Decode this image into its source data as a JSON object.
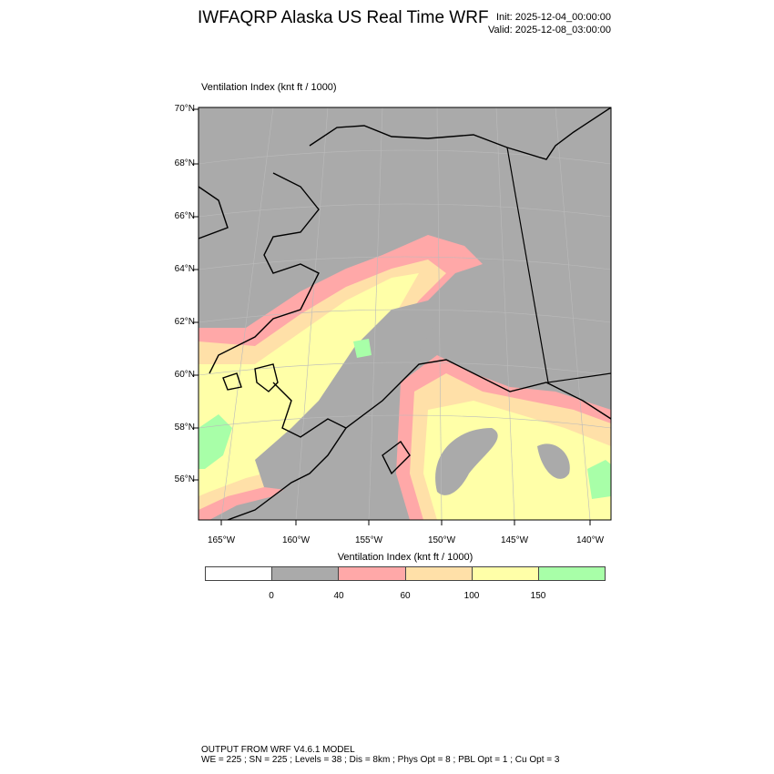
{
  "header": {
    "title": "IWFAQRP Alaska US Real Time WRF",
    "init": "Init: 2025-12-04_00:00:00",
    "valid": "Valid: 2025-12-08_03:00:00"
  },
  "map": {
    "field_label": "Ventilation Index   (knt ft / 1000)",
    "lat_labels": [
      "70°N",
      "68°N",
      "66°N",
      "64°N",
      "62°N",
      "60°N",
      "58°N",
      "56°N"
    ],
    "lon_labels": [
      "165°W",
      "160°W",
      "155°W",
      "150°W",
      "145°W",
      "140°W"
    ],
    "background_color": "#aaaaaa"
  },
  "colorbar": {
    "title": "Ventilation Index  (knt ft / 1000)",
    "colors": [
      "#ffffff",
      "#aaaaaa",
      "#ffa8a8",
      "#ffe0a8",
      "#ffffa8",
      "#a8ffa8"
    ],
    "labels": [
      "0",
      "40",
      "60",
      "100",
      "150"
    ]
  },
  "footer": {
    "line1": "OUTPUT FROM WRF V4.6.1 MODEL",
    "line2": "WE = 225 ; SN = 225 ; Levels = 38 ; Dis = 8km ; Phys Opt = 8 ; PBL Opt = 1 ; Cu Opt = 3"
  }
}
